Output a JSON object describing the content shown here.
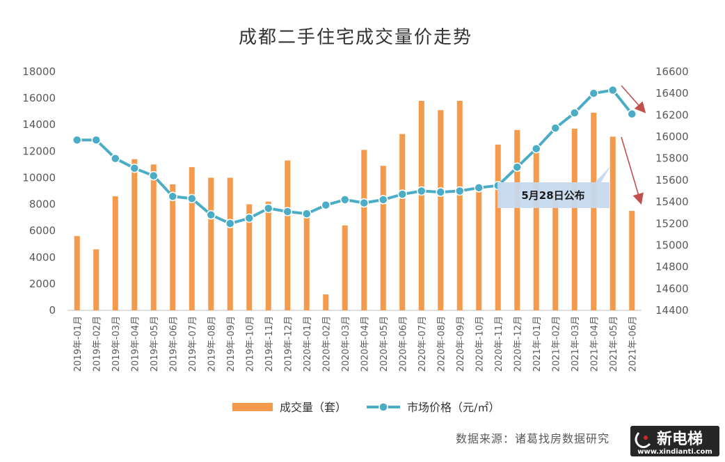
{
  "chart_data": {
    "type": "bar+line",
    "title": "成都二手住宅成交量价走势",
    "categories": [
      "2019年-01月",
      "2019年-02月",
      "2019年-03月",
      "2019年-04月",
      "2019年-05月",
      "2019年-06月",
      "2019年-07月",
      "2019年-08月",
      "2019年-09月",
      "2019年-10月",
      "2019年-11月",
      "2019年-12月",
      "2020年-01月",
      "2020年-02月",
      "2020年-03月",
      "2020年-04月",
      "2020年-05月",
      "2020年-06月",
      "2020年-07月",
      "2020年-08月",
      "2020年-09月",
      "2020年-10月",
      "2020年-11月",
      "2020年-12月",
      "2021年-01月",
      "2021年-02月",
      "2021年-03月",
      "2021年-04月",
      "2021年-05月",
      "2021年-06月"
    ],
    "series": [
      {
        "name": "成交量（套）",
        "type": "bar",
        "axis": "left",
        "color": "#F39A4C",
        "values": [
          5600,
          4600,
          8600,
          11400,
          11000,
          9500,
          10800,
          10000,
          10000,
          8000,
          8200,
          11300,
          7600,
          1200,
          6400,
          12100,
          10900,
          13300,
          15800,
          15100,
          15800,
          9500,
          12500,
          13600,
          12200,
          9000,
          13700,
          14900,
          13100,
          7500
        ]
      },
      {
        "name": "市场价格（元/㎡）",
        "type": "line",
        "axis": "right",
        "color": "#4BACC6",
        "values": [
          15970,
          15970,
          15800,
          15710,
          15640,
          15450,
          15430,
          15280,
          15200,
          15250,
          15340,
          15310,
          15290,
          15370,
          15420,
          15390,
          15420,
          15470,
          15500,
          15490,
          15500,
          15530,
          15550,
          15720,
          15890,
          16080,
          16220,
          16400,
          16430,
          16210
        ]
      }
    ],
    "y_left": {
      "ylim": [
        0,
        18000
      ],
      "ticks": [
        "0",
        "2000",
        "4000",
        "6000",
        "8000",
        "10000",
        "12000",
        "14000",
        "16000",
        "18000"
      ]
    },
    "y_right": {
      "ylim": [
        14400,
        16600
      ],
      "ticks": [
        "14400",
        "14600",
        "14800",
        "15000",
        "15200",
        "15400",
        "15600",
        "15800",
        "16000",
        "16200",
        "16400",
        "16600"
      ]
    },
    "annotations": {
      "callout_text": "5月28日公布",
      "arrow_color": "#C0504D"
    },
    "legend_position": "bottom"
  },
  "source_text": "数据来源：诸葛找房数据研究",
  "watermark": {
    "brand": "新电梯",
    "url": "www.xindianti.com"
  }
}
